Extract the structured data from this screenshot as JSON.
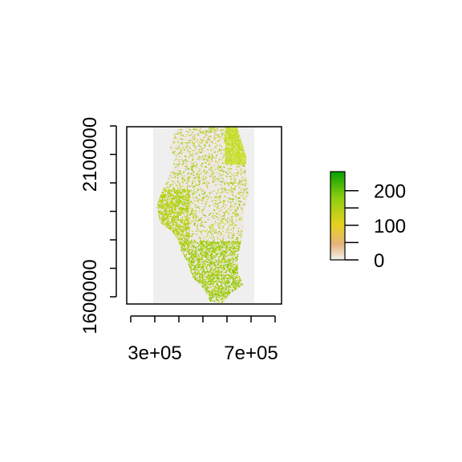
{
  "map": {
    "x_ticks": [
      {
        "value": 200000,
        "label": ""
      },
      {
        "value": 300000,
        "label": "3e+05"
      },
      {
        "value": 400000,
        "label": ""
      },
      {
        "value": 500000,
        "label": ""
      },
      {
        "value": 600000,
        "label": ""
      },
      {
        "value": 700000,
        "label": "7e+05"
      },
      {
        "value": 800000,
        "label": ""
      }
    ],
    "y_ticks": [
      {
        "value": 1600000,
        "label": "1600000"
      },
      {
        "value": 1700000,
        "label": ""
      },
      {
        "value": 1800000,
        "label": ""
      },
      {
        "value": 1900000,
        "label": ""
      },
      {
        "value": 2000000,
        "label": ""
      },
      {
        "value": 2100000,
        "label": "2100000"
      },
      {
        "value": 2200000,
        "label": ""
      }
    ],
    "xlim": [
      180000,
      800000
    ],
    "ylim": [
      1575000,
      2180000
    ],
    "raster_extent_x": [
      320000,
      760000
    ],
    "raster_background": "#efefef",
    "legend": {
      "ticks": [
        {
          "value": 0,
          "label": "0"
        },
        {
          "value": 50,
          "label": ""
        },
        {
          "value": 100,
          "label": "100"
        },
        {
          "value": 150,
          "label": ""
        },
        {
          "value": 200,
          "label": "200"
        }
      ],
      "range": [
        0,
        255
      ],
      "colors": [
        "#f2f2f2",
        "#e6b37a",
        "#e6d11f",
        "#8ece0f",
        "#07a000"
      ]
    }
  }
}
